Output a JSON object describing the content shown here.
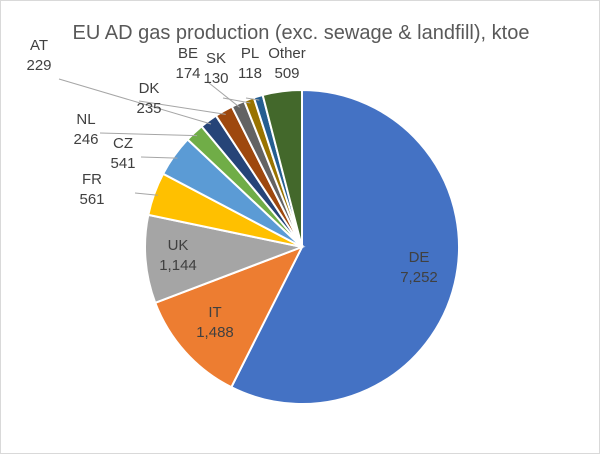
{
  "chart_data": {
    "type": "pie",
    "title": "EU AD gas production (exc. sewage & landfill), ktoe",
    "slices": [
      {
        "label": "DE",
        "value": 7252,
        "value_label": "7,252",
        "color": "#4472C4"
      },
      {
        "label": "IT",
        "value": 1488,
        "value_label": "1,488",
        "color": "#ED7D31"
      },
      {
        "label": "UK",
        "value": 1144,
        "value_label": "1,144",
        "color": "#A5A5A5"
      },
      {
        "label": "FR",
        "value": 561,
        "value_label": "561",
        "color": "#FFC000"
      },
      {
        "label": "CZ",
        "value": 541,
        "value_label": "541",
        "color": "#5B9BD5"
      },
      {
        "label": "NL",
        "value": 246,
        "value_label": "246",
        "color": "#70AD47"
      },
      {
        "label": "AT",
        "value": 229,
        "value_label": "229",
        "color": "#264478"
      },
      {
        "label": "DK",
        "value": 235,
        "value_label": "235",
        "color": "#9E480E"
      },
      {
        "label": "BE",
        "value": 174,
        "value_label": "174",
        "color": "#636363"
      },
      {
        "label": "SK",
        "value": 130,
        "value_label": "130",
        "color": "#997300"
      },
      {
        "label": "PL",
        "value": 118,
        "value_label": "118",
        "color": "#255E91"
      },
      {
        "label": "Other",
        "value": 509,
        "value_label": "509",
        "color": "#43682B"
      }
    ],
    "start_angle_deg": 0,
    "direction": "clockwise",
    "legend": "none"
  }
}
